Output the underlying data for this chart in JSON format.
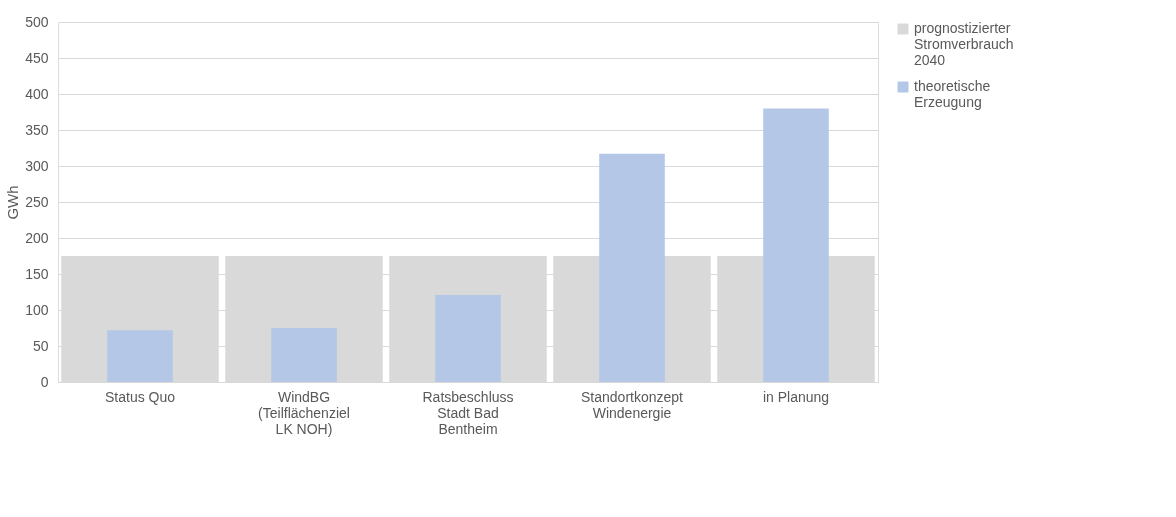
{
  "chart_data": {
    "type": "bar",
    "ylabel": "GWh",
    "categories": [
      "Status Quo",
      "WindBG (Teilflächenziel LK NOH)",
      "Ratsbeschluss Stadt Bad Bentheim",
      "Standortkonzept Windenergie",
      "in Planung"
    ],
    "series": [
      {
        "name": "prognostizierter Stromverbrauch 2040",
        "color": "#d9d9d9",
        "values": [
          175,
          175,
          175,
          175,
          175
        ]
      },
      {
        "name": "theoretische Erzeugung",
        "color": "#b4c7e7",
        "values": [
          72,
          75,
          121,
          317,
          380
        ]
      }
    ],
    "ylim": [
      0,
      500
    ],
    "yticks": [
      0,
      50,
      100,
      150,
      200,
      250,
      300,
      350,
      400,
      450,
      500
    ],
    "grid": "y",
    "legend": "right"
  }
}
